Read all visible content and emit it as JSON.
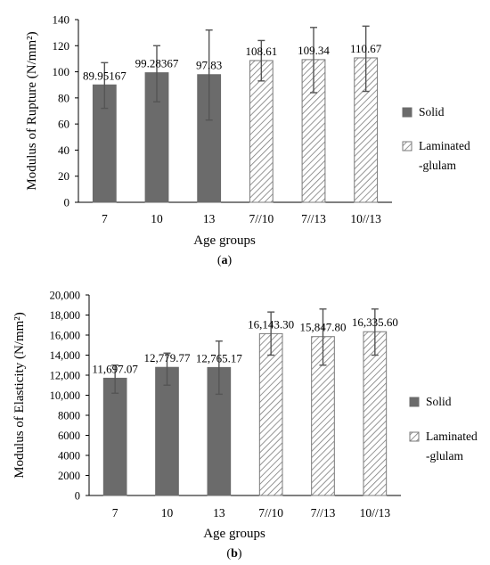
{
  "colors": {
    "solid_fill": "#6b6b6b",
    "hatch_stroke": "#7a7a7a",
    "hatch_bg": "#ffffff",
    "errorbar": "#555555",
    "axis": "#000000"
  },
  "chart_data": [
    {
      "type": "bar",
      "panel_label": "a",
      "categories": [
        "7",
        "10",
        "13",
        "7//10",
        "7//13",
        "10//13"
      ],
      "values": [
        89.95167,
        99.28367,
        97.83,
        108.61,
        109.34,
        110.67
      ],
      "value_labels": [
        "89.95167",
        "99.28367",
        "97.83",
        "108.61",
        "109.34",
        "110.67"
      ],
      "error_low": [
        72,
        77,
        63,
        93,
        84,
        85
      ],
      "error_high": [
        107,
        120,
        132,
        124,
        134,
        135
      ],
      "bar_style": [
        "solid",
        "solid",
        "solid",
        "hatched",
        "hatched",
        "hatched"
      ],
      "ylabel": "Modulus of Rupture (N/mm²)",
      "xlabel": "Age groups",
      "ylim": [
        0,
        140
      ],
      "yticks": [
        "0",
        "20",
        "40",
        "60",
        "80",
        "100",
        "120",
        "140"
      ],
      "ytick_values": [
        0,
        20,
        40,
        60,
        80,
        100,
        120,
        140
      ],
      "legend": [
        {
          "style": "solid",
          "label": "Solid"
        },
        {
          "style": "hatched",
          "label": "Laminated",
          "label2": "-glulam"
        }
      ],
      "legend_position": "right",
      "grid": false
    },
    {
      "type": "bar",
      "panel_label": "b",
      "categories": [
        "7",
        "10",
        "13",
        "7//10",
        "7//13",
        "10//13"
      ],
      "values": [
        11697.07,
        12779.77,
        12765.17,
        16143.3,
        15847.8,
        16335.6
      ],
      "value_labels": [
        "11,697.07",
        "12,779.77",
        "12,765.17",
        "16,143.30",
        "15,847.80",
        "16,335.60"
      ],
      "error_low": [
        10200,
        11000,
        10100,
        14000,
        13000,
        14000
      ],
      "error_high": [
        13000,
        14200,
        15400,
        18300,
        18600,
        18600
      ],
      "bar_style": [
        "solid",
        "solid",
        "solid",
        "hatched",
        "hatched",
        "hatched"
      ],
      "ylabel": "Modulus of Elasticity (N/mm²)",
      "xlabel": "Age groups",
      "ylim": [
        0,
        20000
      ],
      "yticks": [
        "0",
        "2000",
        "4000",
        "6000",
        "8000",
        "10,000",
        "12,000",
        "14,000",
        "16,000",
        "18,000",
        "20,000"
      ],
      "ytick_values": [
        0,
        2000,
        4000,
        6000,
        8000,
        10000,
        12000,
        14000,
        16000,
        18000,
        20000
      ],
      "legend": [
        {
          "style": "solid",
          "label": "Solid"
        },
        {
          "style": "hatched",
          "label": "Laminated",
          "label2": "-glulam"
        }
      ],
      "legend_position": "right",
      "grid": false
    }
  ]
}
